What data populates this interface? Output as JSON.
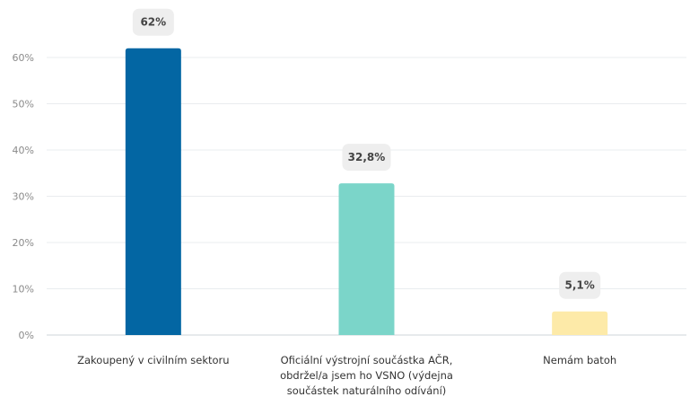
{
  "chart_data": {
    "type": "bar",
    "categories": [
      [
        "Zakoupený v civilním sektoru"
      ],
      [
        "Oficiální výstrojní součástka AČR,",
        "obdržel/a jsem ho VSNO (výdejna",
        "součástek naturálního odívání)"
      ],
      [
        "Nemám batoh"
      ]
    ],
    "values": [
      62,
      32.8,
      5.1
    ],
    "data_labels": [
      "62%",
      "32,8%",
      "5,1%"
    ],
    "colors": [
      "#0366a3",
      "#7bd5c9",
      "#fdeaa8"
    ],
    "yticks": [
      0,
      10,
      20,
      30,
      40,
      50,
      60
    ],
    "ytick_labels": [
      "0%",
      "10%",
      "20%",
      "30%",
      "40%",
      "50%",
      "60%"
    ],
    "ylim": [
      0,
      65
    ],
    "grid": true,
    "legend": "none"
  }
}
